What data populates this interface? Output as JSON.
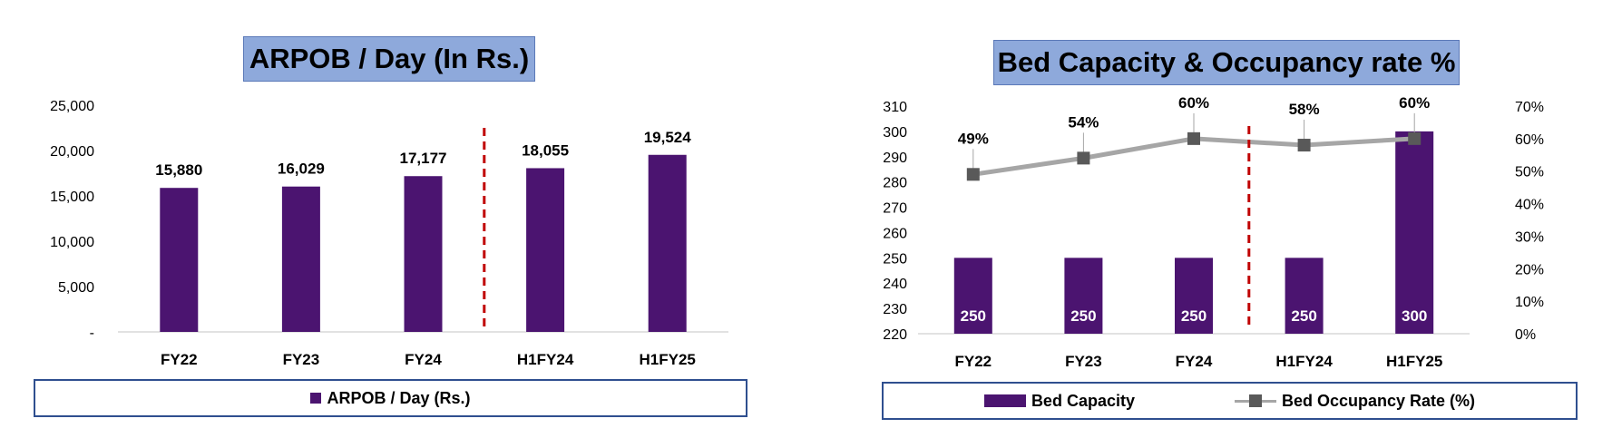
{
  "chart_data": [
    {
      "type": "bar",
      "title": "ARPOB / Day (In Rs.)",
      "categories": [
        "FY22",
        "FY23",
        "FY24",
        "H1FY24",
        "H1FY25"
      ],
      "series": [
        {
          "name": "ARPOB / Day (Rs.)",
          "values": [
            15880,
            16029,
            17177,
            18055,
            19524
          ],
          "labels": [
            "15,880",
            "16,029",
            "17,177",
            "18,055",
            "19,524"
          ]
        }
      ],
      "ylim": [
        0,
        25000
      ],
      "yticks": [
        {
          "value": 0,
          "label": "-"
        },
        {
          "value": 5000,
          "label": "5,000"
        },
        {
          "value": 10000,
          "label": "10,000"
        },
        {
          "value": 15000,
          "label": "15,000"
        },
        {
          "value": 20000,
          "label": "20,000"
        },
        {
          "value": 25000,
          "label": "25,000"
        }
      ],
      "divider_after_category": "FY24",
      "legend_position": "bottom",
      "grid": false
    },
    {
      "type": "bar",
      "title": "Bed Capacity & Occupancy rate %",
      "categories": [
        "FY22",
        "FY23",
        "FY24",
        "H1FY24",
        "H1FY25"
      ],
      "series": [
        {
          "name": "Bed Capacity",
          "type": "bar",
          "axis": "left",
          "values": [
            250,
            250,
            250,
            250,
            300
          ],
          "labels": [
            "250",
            "250",
            "250",
            "250",
            "300"
          ]
        },
        {
          "name": "Bed Occupancy Rate (%)",
          "type": "line",
          "axis": "right",
          "values": [
            49,
            54,
            60,
            58,
            60
          ],
          "labels": [
            "49%",
            "54%",
            "60%",
            "58%",
            "60%"
          ]
        }
      ],
      "ylim": [
        220,
        310
      ],
      "yticks": [
        "220",
        "230",
        "240",
        "250",
        "260",
        "270",
        "280",
        "290",
        "300",
        "310"
      ],
      "y2lim": [
        0,
        70
      ],
      "y2ticks": [
        "0%",
        "10%",
        "20%",
        "30%",
        "40%",
        "50%",
        "60%",
        "70%"
      ],
      "divider_after_category": "FY24",
      "legend_position": "bottom",
      "grid": false
    }
  ],
  "colors": {
    "bar": "#4b1470",
    "line": "#a6a6a6",
    "marker": "#595959",
    "divider": "#c00000",
    "axis": "#d9d9d9",
    "title_bg": "#8ea9db",
    "legend_border": "#2f4f8f"
  }
}
